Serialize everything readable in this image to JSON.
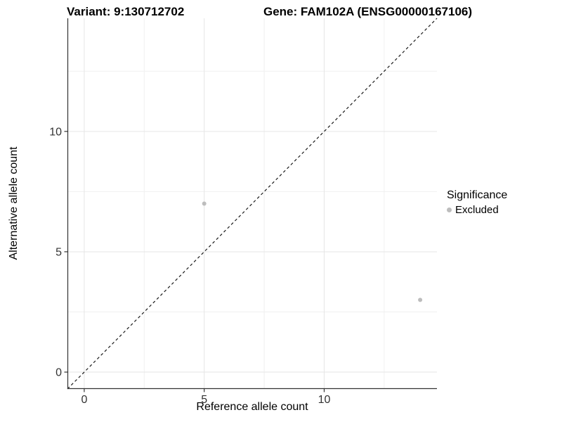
{
  "header": {
    "variant_title": "Variant: 9:130712702",
    "gene_title": "Gene: FAM102A (ENSG00000167106)"
  },
  "legend": {
    "title": "Significance",
    "items": [
      {
        "label": "Excluded",
        "color": "#bdbdbd",
        "marker": "circle"
      }
    ]
  },
  "chart_data": {
    "type": "scatter",
    "title": "Variant: 9:130712702 | Gene: FAM102A (ENSG00000167106)",
    "xlabel": "Reference allele count",
    "ylabel": "Alternative allele count",
    "xlim": [
      -0.7,
      14.7
    ],
    "ylim": [
      -0.7,
      14.7
    ],
    "x_major_ticks": [
      0,
      5,
      10
    ],
    "y_major_ticks": [
      0,
      5,
      10
    ],
    "x_minor_gridlines": [
      2.5,
      7.5,
      12.5
    ],
    "y_minor_gridlines": [
      2.5,
      7.5,
      12.5
    ],
    "grid": true,
    "legend_position": "right",
    "series": [
      {
        "name": "Excluded",
        "color": "#bdbdbd",
        "points": [
          {
            "x": 5,
            "y": 7
          },
          {
            "x": 14,
            "y": 3
          }
        ]
      }
    ],
    "reference_line": {
      "slope": 1,
      "intercept": 0,
      "style": "dashed",
      "color": "#1a1a1a"
    }
  },
  "colors": {
    "background": "#ffffff",
    "axis_line": "#333333",
    "tick_text": "#333333",
    "grid_major": "#e6e6e6",
    "grid_minor": "#f0f0f0",
    "point": "#bdbdbd"
  }
}
